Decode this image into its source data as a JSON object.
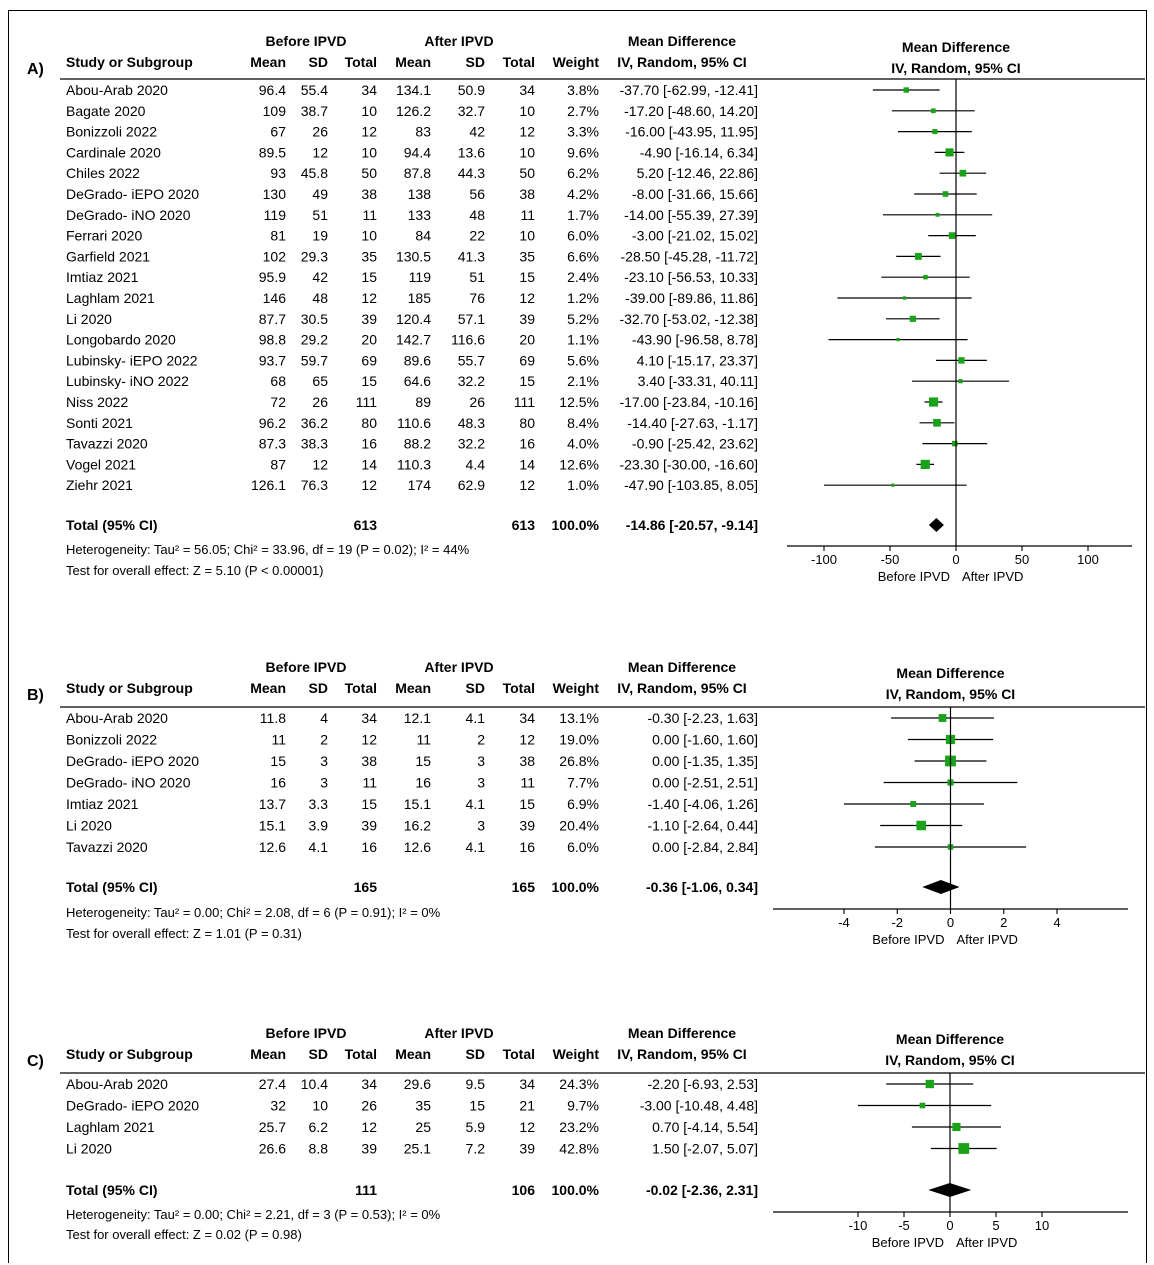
{
  "chart_data": [
    {
      "type": "forest",
      "panel_label": "A)",
      "headers": {
        "study": "Study or Subgroup",
        "group1": "Before IPVD",
        "group2": "After IPVD",
        "mean": "Mean",
        "sd": "SD",
        "total": "Total",
        "weight": "Weight",
        "md_title": "Mean Difference",
        "md_sub": "IV, Random, 95% CI",
        "plot_title": "Mean Difference",
        "plot_sub": "IV, Random, 95% CI"
      },
      "studies": [
        {
          "name": "Abou-Arab 2020",
          "m1": "96.4",
          "sd1": "55.4",
          "n1": "34",
          "m2": "134.1",
          "sd2": "50.9",
          "n2": "34",
          "weight": "3.8%",
          "ci_text": "-37.70 [-62.99, -12.41]",
          "md": -37.7,
          "lo": -62.99,
          "hi": -12.41,
          "w": 3.8
        },
        {
          "name": "Bagate 2020",
          "m1": "109",
          "sd1": "38.7",
          "n1": "10",
          "m2": "126.2",
          "sd2": "32.7",
          "n2": "10",
          "weight": "2.7%",
          "ci_text": "-17.20 [-48.60, 14.20]",
          "md": -17.2,
          "lo": -48.6,
          "hi": 14.2,
          "w": 2.7
        },
        {
          "name": "Bonizzoli 2022",
          "m1": "67",
          "sd1": "26",
          "n1": "12",
          "m2": "83",
          "sd2": "42",
          "n2": "12",
          "weight": "3.3%",
          "ci_text": "-16.00 [-43.95, 11.95]",
          "md": -16.0,
          "lo": -43.95,
          "hi": 11.95,
          "w": 3.3
        },
        {
          "name": "Cardinale 2020",
          "m1": "89.5",
          "sd1": "12",
          "n1": "10",
          "m2": "94.4",
          "sd2": "13.6",
          "n2": "10",
          "weight": "9.6%",
          "ci_text": "-4.90 [-16.14, 6.34]",
          "md": -4.9,
          "lo": -16.14,
          "hi": 6.34,
          "w": 9.6
        },
        {
          "name": "Chiles 2022",
          "m1": "93",
          "sd1": "45.8",
          "n1": "50",
          "m2": "87.8",
          "sd2": "44.3",
          "n2": "50",
          "weight": "6.2%",
          "ci_text": "5.20 [-12.46, 22.86]",
          "md": 5.2,
          "lo": -12.46,
          "hi": 22.86,
          "w": 6.2
        },
        {
          "name": "DeGrado- iEPO 2020",
          "m1": "130",
          "sd1": "49",
          "n1": "38",
          "m2": "138",
          "sd2": "56",
          "n2": "38",
          "weight": "4.2%",
          "ci_text": "-8.00 [-31.66, 15.66]",
          "md": -8.0,
          "lo": -31.66,
          "hi": 15.66,
          "w": 4.2
        },
        {
          "name": "DeGrado- iNO 2020",
          "m1": "119",
          "sd1": "51",
          "n1": "11",
          "m2": "133",
          "sd2": "48",
          "n2": "11",
          "weight": "1.7%",
          "ci_text": "-14.00 [-55.39, 27.39]",
          "md": -14.0,
          "lo": -55.39,
          "hi": 27.39,
          "w": 1.7
        },
        {
          "name": "Ferrari 2020",
          "m1": "81",
          "sd1": "19",
          "n1": "10",
          "m2": "84",
          "sd2": "22",
          "n2": "10",
          "weight": "6.0%",
          "ci_text": "-3.00 [-21.02, 15.02]",
          "md": -3.0,
          "lo": -21.02,
          "hi": 15.02,
          "w": 6.0
        },
        {
          "name": "Garfield 2021",
          "m1": "102",
          "sd1": "29.3",
          "n1": "35",
          "m2": "130.5",
          "sd2": "41.3",
          "n2": "35",
          "weight": "6.6%",
          "ci_text": "-28.50 [-45.28, -11.72]",
          "md": -28.5,
          "lo": -45.28,
          "hi": -11.72,
          "w": 6.6
        },
        {
          "name": "Imtiaz 2021",
          "m1": "95.9",
          "sd1": "42",
          "n1": "15",
          "m2": "119",
          "sd2": "51",
          "n2": "15",
          "weight": "2.4%",
          "ci_text": "-23.10 [-56.53, 10.33]",
          "md": -23.1,
          "lo": -56.53,
          "hi": 10.33,
          "w": 2.4
        },
        {
          "name": "Laghlam 2021",
          "m1": "146",
          "sd1": "48",
          "n1": "12",
          "m2": "185",
          "sd2": "76",
          "n2": "12",
          "weight": "1.2%",
          "ci_text": "-39.00 [-89.86, 11.86]",
          "md": -39.0,
          "lo": -89.86,
          "hi": 11.86,
          "w": 1.2
        },
        {
          "name": "Li 2020",
          "m1": "87.7",
          "sd1": "30.5",
          "n1": "39",
          "m2": "120.4",
          "sd2": "57.1",
          "n2": "39",
          "weight": "5.2%",
          "ci_text": "-32.70 [-53.02, -12.38]",
          "md": -32.7,
          "lo": -53.02,
          "hi": -12.38,
          "w": 5.2
        },
        {
          "name": "Longobardo 2020",
          "m1": "98.8",
          "sd1": "29.2",
          "n1": "20",
          "m2": "142.7",
          "sd2": "116.6",
          "n2": "20",
          "weight": "1.1%",
          "ci_text": "-43.90 [-96.58, 8.78]",
          "md": -43.9,
          "lo": -96.58,
          "hi": 8.78,
          "w": 1.1
        },
        {
          "name": "Lubinsky- iEPO 2022",
          "m1": "93.7",
          "sd1": "59.7",
          "n1": "69",
          "m2": "89.6",
          "sd2": "55.7",
          "n2": "69",
          "weight": "5.6%",
          "ci_text": "4.10 [-15.17, 23.37]",
          "md": 4.1,
          "lo": -15.17,
          "hi": 23.37,
          "w": 5.6
        },
        {
          "name": "Lubinsky- iNO 2022",
          "m1": "68",
          "sd1": "65",
          "n1": "15",
          "m2": "64.6",
          "sd2": "32.2",
          "n2": "15",
          "weight": "2.1%",
          "ci_text": "3.40 [-33.31, 40.11]",
          "md": 3.4,
          "lo": -33.31,
          "hi": 40.11,
          "w": 2.1
        },
        {
          "name": "Niss 2022",
          "m1": "72",
          "sd1": "26",
          "n1": "111",
          "m2": "89",
          "sd2": "26",
          "n2": "111",
          "weight": "12.5%",
          "ci_text": "-17.00 [-23.84, -10.16]",
          "md": -17.0,
          "lo": -23.84,
          "hi": -10.16,
          "w": 12.5
        },
        {
          "name": "Sonti 2021",
          "m1": "96.2",
          "sd1": "36.2",
          "n1": "80",
          "m2": "110.6",
          "sd2": "48.3",
          "n2": "80",
          "weight": "8.4%",
          "ci_text": "-14.40 [-27.63, -1.17]",
          "md": -14.4,
          "lo": -27.63,
          "hi": -1.17,
          "w": 8.4
        },
        {
          "name": "Tavazzi 2020",
          "m1": "87.3",
          "sd1": "38.3",
          "n1": "16",
          "m2": "88.2",
          "sd2": "32.2",
          "n2": "16",
          "weight": "4.0%",
          "ci_text": "-0.90 [-25.42, 23.62]",
          "md": -0.9,
          "lo": -25.42,
          "hi": 23.62,
          "w": 4.0
        },
        {
          "name": "Vogel 2021",
          "m1": "87",
          "sd1": "12",
          "n1": "14",
          "m2": "110.3",
          "sd2": "4.4",
          "n2": "14",
          "weight": "12.6%",
          "ci_text": "-23.30 [-30.00, -16.60]",
          "md": -23.3,
          "lo": -30.0,
          "hi": -16.6,
          "w": 12.6
        },
        {
          "name": "Ziehr 2021",
          "m1": "126.1",
          "sd1": "76.3",
          "n1": "12",
          "m2": "174",
          "sd2": "62.9",
          "n2": "12",
          "weight": "1.0%",
          "ci_text": "-47.90 [-103.85, 8.05]",
          "md": -47.9,
          "lo": -103.85,
          "hi": 8.05,
          "w": 1.0
        }
      ],
      "total": {
        "label": "Total (95% CI)",
        "n1": "613",
        "n2": "613",
        "weight": "100.0%",
        "ci_text": "-14.86 [-20.57, -9.14]",
        "md": -14.86,
        "lo": -20.57,
        "hi": -9.14
      },
      "heterogeneity": "Heterogeneity: Tau² = 56.05; Chi² = 33.96, df = 19 (P = 0.02); I² = 44%",
      "overall_test": "Test for overall effect: Z = 5.10 (P < 0.00001)",
      "axis": {
        "range": [
          -100,
          100
        ],
        "ticks": [
          -100,
          -50,
          0,
          50,
          100
        ],
        "tick_labels": [
          "-100",
          "-50",
          "0",
          "50",
          "100"
        ],
        "left_label": "Before IPVD",
        "right_label": "After IPVD"
      }
    },
    {
      "type": "forest",
      "panel_label": "B)",
      "headers": {
        "study": "Study or Subgroup",
        "group1": "Before IPVD",
        "group2": "After IPVD",
        "mean": "Mean",
        "sd": "SD",
        "total": "Total",
        "weight": "Weight",
        "md_title": "Mean Difference",
        "md_sub": "IV, Random, 95% CI",
        "plot_title": "Mean Difference",
        "plot_sub": "IV, Random, 95% CI"
      },
      "studies": [
        {
          "name": "Abou-Arab 2020",
          "m1": "11.8",
          "sd1": "4",
          "n1": "34",
          "m2": "12.1",
          "sd2": "4.1",
          "n2": "34",
          "weight": "13.1%",
          "ci_text": "-0.30 [-2.23, 1.63]",
          "md": -0.3,
          "lo": -2.23,
          "hi": 1.63,
          "w": 13.1
        },
        {
          "name": "Bonizzoli 2022",
          "m1": "11",
          "sd1": "2",
          "n1": "12",
          "m2": "11",
          "sd2": "2",
          "n2": "12",
          "weight": "19.0%",
          "ci_text": "0.00 [-1.60, 1.60]",
          "md": 0.0,
          "lo": -1.6,
          "hi": 1.6,
          "w": 19.0
        },
        {
          "name": "DeGrado- iEPO 2020",
          "m1": "15",
          "sd1": "3",
          "n1": "38",
          "m2": "15",
          "sd2": "3",
          "n2": "38",
          "weight": "26.8%",
          "ci_text": "0.00 [-1.35, 1.35]",
          "md": 0.0,
          "lo": -1.35,
          "hi": 1.35,
          "w": 26.8
        },
        {
          "name": "DeGrado- iNO 2020",
          "m1": "16",
          "sd1": "3",
          "n1": "11",
          "m2": "16",
          "sd2": "3",
          "n2": "11",
          "weight": "7.7%",
          "ci_text": "0.00 [-2.51, 2.51]",
          "md": 0.0,
          "lo": -2.51,
          "hi": 2.51,
          "w": 7.7
        },
        {
          "name": "Imtiaz 2021",
          "m1": "13.7",
          "sd1": "3.3",
          "n1": "15",
          "m2": "15.1",
          "sd2": "4.1",
          "n2": "15",
          "weight": "6.9%",
          "ci_text": "-1.40 [-4.06, 1.26]",
          "md": -1.4,
          "lo": -4.06,
          "hi": 1.26,
          "w": 6.9
        },
        {
          "name": "Li 2020",
          "m1": "15.1",
          "sd1": "3.9",
          "n1": "39",
          "m2": "16.2",
          "sd2": "3",
          "n2": "39",
          "weight": "20.4%",
          "ci_text": "-1.10 [-2.64, 0.44]",
          "md": -1.1,
          "lo": -2.64,
          "hi": 0.44,
          "w": 20.4
        },
        {
          "name": "Tavazzi 2020",
          "m1": "12.6",
          "sd1": "4.1",
          "n1": "16",
          "m2": "12.6",
          "sd2": "4.1",
          "n2": "16",
          "weight": "6.0%",
          "ci_text": "0.00 [-2.84, 2.84]",
          "md": 0.0,
          "lo": -2.84,
          "hi": 2.84,
          "w": 6.0
        }
      ],
      "total": {
        "label": "Total (95% CI)",
        "n1": "165",
        "n2": "165",
        "weight": "100.0%",
        "ci_text": "-0.36 [-1.06, 0.34]",
        "md": -0.36,
        "lo": -1.06,
        "hi": 0.34
      },
      "heterogeneity": "Heterogeneity: Tau² = 0.00; Chi² = 2.08, df = 6 (P = 0.91); I² = 0%",
      "overall_test": "Test for overall effect: Z = 1.01 (P = 0.31)",
      "axis": {
        "range": [
          -4,
          4
        ],
        "ticks": [
          -4,
          -2,
          0,
          2,
          4
        ],
        "tick_labels": [
          "-4",
          "-2",
          "0",
          "2",
          "4"
        ],
        "left_label": "Before IPVD",
        "right_label": "After IPVD"
      }
    },
    {
      "type": "forest",
      "panel_label": "C)",
      "headers": {
        "study": "Study or Subgroup",
        "group1": "Before IPVD",
        "group2": "After IPVD",
        "mean": "Mean",
        "sd": "SD",
        "total": "Total",
        "weight": "Weight",
        "md_title": "Mean Difference",
        "md_sub": "IV, Random, 95% CI",
        "plot_title": "Mean Difference",
        "plot_sub": "IV, Random, 95% CI"
      },
      "studies": [
        {
          "name": "Abou-Arab 2020",
          "m1": "27.4",
          "sd1": "10.4",
          "n1": "34",
          "m2": "29.6",
          "sd2": "9.5",
          "n2": "34",
          "weight": "24.3%",
          "ci_text": "-2.20 [-6.93, 2.53]",
          "md": -2.2,
          "lo": -6.93,
          "hi": 2.53,
          "w": 24.3
        },
        {
          "name": "DeGrado- iEPO 2020",
          "m1": "32",
          "sd1": "10",
          "n1": "26",
          "m2": "35",
          "sd2": "15",
          "n2": "21",
          "weight": "9.7%",
          "ci_text": "-3.00 [-10.48, 4.48]",
          "md": -3.0,
          "lo": -10.48,
          "hi": 4.48,
          "w": 9.7
        },
        {
          "name": "Laghlam 2021",
          "m1": "25.7",
          "sd1": "6.2",
          "n1": "12",
          "m2": "25",
          "sd2": "5.9",
          "n2": "12",
          "weight": "23.2%",
          "ci_text": "0.70 [-4.14, 5.54]",
          "md": 0.7,
          "lo": -4.14,
          "hi": 5.54,
          "w": 23.2
        },
        {
          "name": "Li 2020",
          "m1": "26.6",
          "sd1": "8.8",
          "n1": "39",
          "m2": "25.1",
          "sd2": "7.2",
          "n2": "39",
          "weight": "42.8%",
          "ci_text": "1.50 [-2.07, 5.07]",
          "md": 1.5,
          "lo": -2.07,
          "hi": 5.07,
          "w": 42.8
        }
      ],
      "total": {
        "label": "Total (95% CI)",
        "n1": "111",
        "n2": "106",
        "weight": "100.0%",
        "ci_text": "-0.02 [-2.36, 2.31]",
        "md": -0.02,
        "lo": -2.36,
        "hi": 2.31
      },
      "heterogeneity": "Heterogeneity: Tau² = 0.00; Chi² = 2.21, df = 3 (P = 0.53); I² = 0%",
      "overall_test": "Test for overall effect: Z = 0.02 (P = 0.98)",
      "axis": {
        "range": [
          -10,
          10
        ],
        "ticks": [
          -10,
          -5,
          0,
          5,
          10
        ],
        "tick_labels": [
          "-10",
          "-5",
          "0",
          "5",
          "10"
        ],
        "left_label": "Before IPVD",
        "right_label": "After IPVD"
      }
    }
  ],
  "colors": {
    "marker": "#1aa31a",
    "diamond": "#000000",
    "line": "#000000"
  }
}
